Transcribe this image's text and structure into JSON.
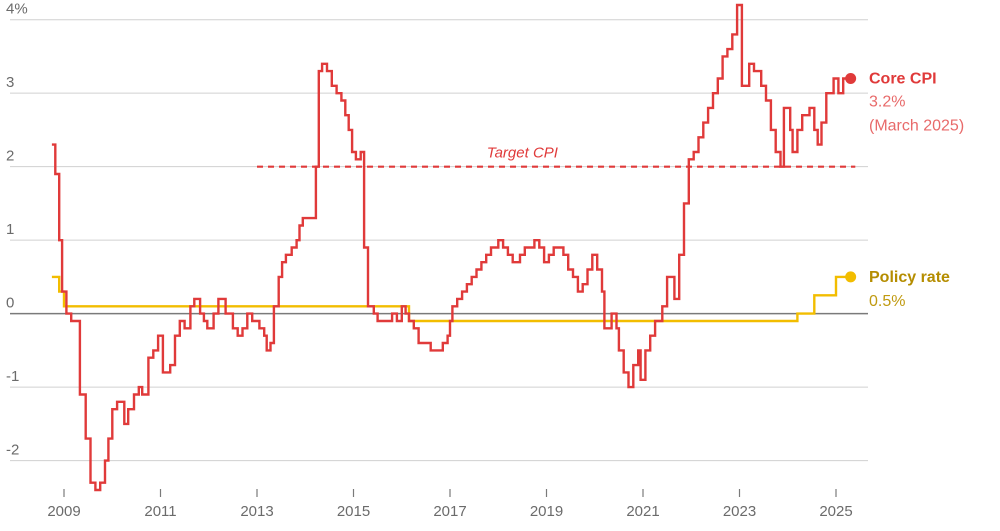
{
  "chart_data": {
    "type": "line",
    "ylim": [
      -2.4,
      4.2
    ],
    "xlim": [
      2008.6,
      2025.55
    ],
    "y_ticks": [
      {
        "value": 4,
        "label": "4%"
      },
      {
        "value": 3,
        "label": "3"
      },
      {
        "value": 2,
        "label": "2"
      },
      {
        "value": 1,
        "label": "1"
      },
      {
        "value": 0,
        "label": "0"
      },
      {
        "value": -1,
        "label": "-1"
      },
      {
        "value": -2,
        "label": "-2"
      }
    ],
    "x_ticks": [
      2009,
      2011,
      2013,
      2015,
      2017,
      2019,
      2021,
      2023,
      2025
    ],
    "grid": true,
    "reference_line": {
      "label": "Target CPI",
      "value": 2,
      "x_start": 2013.0,
      "x_end": 2025.4,
      "color": "#e03a3a"
    },
    "series": [
      {
        "name": "Core CPI",
        "color": "#e03a3a",
        "end_label": {
          "name": "Core CPI",
          "value": "3.2%",
          "note": "(March 2025)"
        },
        "step": true,
        "points": [
          [
            2008.75,
            2.3
          ],
          [
            2008.82,
            1.9
          ],
          [
            2008.9,
            1.0
          ],
          [
            2008.96,
            0.3
          ],
          [
            2009.05,
            0.0
          ],
          [
            2009.15,
            -0.1
          ],
          [
            2009.33,
            -1.1
          ],
          [
            2009.45,
            -1.7
          ],
          [
            2009.55,
            -2.3
          ],
          [
            2009.65,
            -2.4
          ],
          [
            2009.75,
            -2.3
          ],
          [
            2009.85,
            -2.0
          ],
          [
            2009.92,
            -1.7
          ],
          [
            2010.0,
            -1.3
          ],
          [
            2010.1,
            -1.2
          ],
          [
            2010.25,
            -1.5
          ],
          [
            2010.33,
            -1.3
          ],
          [
            2010.45,
            -1.1
          ],
          [
            2010.55,
            -1.0
          ],
          [
            2010.62,
            -1.1
          ],
          [
            2010.75,
            -0.6
          ],
          [
            2010.85,
            -0.5
          ],
          [
            2010.95,
            -0.3
          ],
          [
            2011.05,
            -0.8
          ],
          [
            2011.2,
            -0.7
          ],
          [
            2011.3,
            -0.3
          ],
          [
            2011.4,
            -0.1
          ],
          [
            2011.5,
            -0.2
          ],
          [
            2011.62,
            0.1
          ],
          [
            2011.7,
            0.2
          ],
          [
            2011.82,
            0.0
          ],
          [
            2011.9,
            -0.1
          ],
          [
            2011.97,
            -0.2
          ],
          [
            2012.1,
            0.0
          ],
          [
            2012.2,
            0.2
          ],
          [
            2012.35,
            0.0
          ],
          [
            2012.5,
            -0.2
          ],
          [
            2012.6,
            -0.3
          ],
          [
            2012.7,
            -0.2
          ],
          [
            2012.8,
            0.0
          ],
          [
            2012.9,
            -0.1
          ],
          [
            2013.05,
            -0.2
          ],
          [
            2013.15,
            -0.3
          ],
          [
            2013.2,
            -0.5
          ],
          [
            2013.28,
            -0.4
          ],
          [
            2013.35,
            0.1
          ],
          [
            2013.45,
            0.5
          ],
          [
            2013.52,
            0.7
          ],
          [
            2013.6,
            0.8
          ],
          [
            2013.72,
            0.9
          ],
          [
            2013.82,
            1.0
          ],
          [
            2013.88,
            1.2
          ],
          [
            2013.95,
            1.3
          ],
          [
            2014.15,
            1.3
          ],
          [
            2014.22,
            2.0
          ],
          [
            2014.28,
            3.3
          ],
          [
            2014.35,
            3.4
          ],
          [
            2014.45,
            3.3
          ],
          [
            2014.55,
            3.1
          ],
          [
            2014.65,
            3.0
          ],
          [
            2014.75,
            2.9
          ],
          [
            2014.83,
            2.7
          ],
          [
            2014.9,
            2.5
          ],
          [
            2014.97,
            2.2
          ],
          [
            2015.05,
            2.1
          ],
          [
            2015.15,
            2.2
          ],
          [
            2015.22,
            0.9
          ],
          [
            2015.3,
            0.1
          ],
          [
            2015.42,
            0.0
          ],
          [
            2015.5,
            -0.1
          ],
          [
            2015.8,
            0.0
          ],
          [
            2015.9,
            -0.1
          ],
          [
            2016.0,
            0.1
          ],
          [
            2016.08,
            0.0
          ],
          [
            2016.15,
            -0.1
          ],
          [
            2016.25,
            -0.2
          ],
          [
            2016.35,
            -0.4
          ],
          [
            2016.5,
            -0.4
          ],
          [
            2016.6,
            -0.5
          ],
          [
            2016.85,
            -0.4
          ],
          [
            2016.95,
            -0.3
          ],
          [
            2017.0,
            -0.1
          ],
          [
            2017.05,
            0.1
          ],
          [
            2017.15,
            0.2
          ],
          [
            2017.25,
            0.3
          ],
          [
            2017.35,
            0.4
          ],
          [
            2017.45,
            0.5
          ],
          [
            2017.55,
            0.6
          ],
          [
            2017.65,
            0.7
          ],
          [
            2017.75,
            0.8
          ],
          [
            2017.85,
            0.9
          ],
          [
            2017.95,
            0.9
          ],
          [
            2018.0,
            1.0
          ],
          [
            2018.1,
            0.9
          ],
          [
            2018.2,
            0.8
          ],
          [
            2018.3,
            0.7
          ],
          [
            2018.45,
            0.8
          ],
          [
            2018.55,
            0.9
          ],
          [
            2018.65,
            0.9
          ],
          [
            2018.75,
            1.0
          ],
          [
            2018.85,
            0.9
          ],
          [
            2018.95,
            0.7
          ],
          [
            2019.05,
            0.8
          ],
          [
            2019.15,
            0.9
          ],
          [
            2019.25,
            0.9
          ],
          [
            2019.35,
            0.8
          ],
          [
            2019.45,
            0.6
          ],
          [
            2019.55,
            0.5
          ],
          [
            2019.65,
            0.3
          ],
          [
            2019.75,
            0.4
          ],
          [
            2019.85,
            0.6
          ],
          [
            2019.95,
            0.8
          ],
          [
            2020.05,
            0.6
          ],
          [
            2020.15,
            0.3
          ],
          [
            2020.2,
            -0.2
          ],
          [
            2020.35,
            0.0
          ],
          [
            2020.45,
            -0.2
          ],
          [
            2020.5,
            -0.5
          ],
          [
            2020.6,
            -0.8
          ],
          [
            2020.7,
            -1.0
          ],
          [
            2020.8,
            -0.7
          ],
          [
            2020.9,
            -0.5
          ],
          [
            2020.95,
            -0.9
          ],
          [
            2021.05,
            -0.5
          ],
          [
            2021.15,
            -0.3
          ],
          [
            2021.25,
            -0.1
          ],
          [
            2021.4,
            0.1
          ],
          [
            2021.5,
            0.5
          ],
          [
            2021.65,
            0.2
          ],
          [
            2021.75,
            0.8
          ],
          [
            2021.85,
            1.5
          ],
          [
            2021.95,
            2.1
          ],
          [
            2022.05,
            2.2
          ],
          [
            2022.15,
            2.4
          ],
          [
            2022.25,
            2.6
          ],
          [
            2022.35,
            2.8
          ],
          [
            2022.45,
            3.0
          ],
          [
            2022.55,
            3.2
          ],
          [
            2022.65,
            3.5
          ],
          [
            2022.75,
            3.6
          ],
          [
            2022.85,
            3.8
          ],
          [
            2022.95,
            4.2
          ],
          [
            2023.05,
            3.1
          ],
          [
            2023.2,
            3.4
          ],
          [
            2023.3,
            3.3
          ],
          [
            2023.45,
            3.1
          ],
          [
            2023.55,
            2.9
          ],
          [
            2023.65,
            2.5
          ],
          [
            2023.75,
            2.2
          ],
          [
            2023.85,
            2.0
          ],
          [
            2023.92,
            2.8
          ],
          [
            2024.05,
            2.5
          ],
          [
            2024.1,
            2.2
          ],
          [
            2024.2,
            2.5
          ],
          [
            2024.3,
            2.7
          ],
          [
            2024.45,
            2.8
          ],
          [
            2024.55,
            2.5
          ],
          [
            2024.62,
            2.3
          ],
          [
            2024.7,
            2.6
          ],
          [
            2024.8,
            3.0
          ],
          [
            2024.95,
            3.2
          ],
          [
            2025.05,
            3.0
          ],
          [
            2025.15,
            3.2
          ],
          [
            2025.2,
            3.2
          ]
        ]
      },
      {
        "name": "Policy rate",
        "color": "#f2bd00",
        "end_label": {
          "name": "Policy rate",
          "value": "0.5%"
        },
        "step": true,
        "points": [
          [
            2008.75,
            0.5
          ],
          [
            2008.9,
            0.3
          ],
          [
            2009.0,
            0.1
          ],
          [
            2016.15,
            -0.1
          ],
          [
            2024.2,
            0.0
          ],
          [
            2024.55,
            0.25
          ],
          [
            2025.0,
            0.5
          ],
          [
            2025.2,
            0.5
          ]
        ]
      }
    ]
  }
}
